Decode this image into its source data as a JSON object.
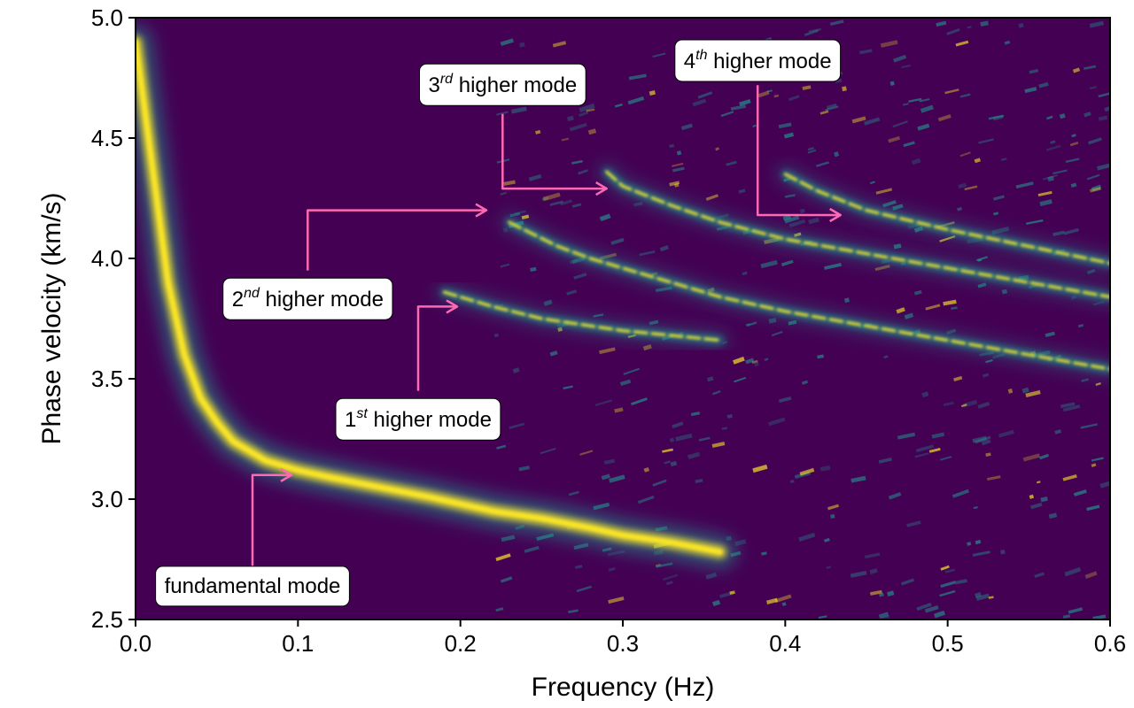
{
  "chart_data": {
    "type": "heatmap",
    "xlabel": "Frequency (Hz)",
    "ylabel": "Phase velocity (km/s)",
    "xlim": [
      0.0,
      0.6
    ],
    "ylim": [
      2.5,
      5.0
    ],
    "x_ticks": [
      "0.0",
      "0.1",
      "0.2",
      "0.3",
      "0.4",
      "0.5",
      "0.6"
    ],
    "y_ticks": [
      "2.5",
      "3.0",
      "3.5",
      "4.0",
      "4.5",
      "5.0"
    ],
    "grid": false,
    "colormap": "viridis",
    "colors": {
      "background": "#440154",
      "mid": "#21918c",
      "high": "#fde725",
      "arrow": "#ff69b4"
    },
    "modes": [
      {
        "name": "fundamental mode",
        "x": [
          0.0,
          0.01,
          0.02,
          0.03,
          0.04,
          0.05,
          0.06,
          0.08,
          0.1,
          0.12,
          0.15,
          0.18,
          0.2,
          0.22,
          0.25,
          0.28,
          0.3,
          0.33,
          0.36
        ],
        "y": [
          4.9,
          4.4,
          3.9,
          3.6,
          3.42,
          3.32,
          3.24,
          3.16,
          3.12,
          3.09,
          3.05,
          3.01,
          2.98,
          2.95,
          2.92,
          2.88,
          2.85,
          2.82,
          2.78
        ]
      },
      {
        "name": "1st higher mode",
        "x": [
          0.19,
          0.22,
          0.25,
          0.28,
          0.3,
          0.33,
          0.36
        ],
        "y": [
          3.86,
          3.8,
          3.75,
          3.72,
          3.7,
          3.68,
          3.66
        ]
      },
      {
        "name": "2nd higher mode",
        "x": [
          0.23,
          0.26,
          0.28,
          0.3,
          0.33,
          0.36,
          0.4,
          0.45,
          0.5,
          0.55,
          0.6
        ],
        "y": [
          4.15,
          4.05,
          4.0,
          3.96,
          3.9,
          3.84,
          3.78,
          3.72,
          3.66,
          3.6,
          3.54
        ]
      },
      {
        "name": "3rd higher mode",
        "x": [
          0.29,
          0.3,
          0.33,
          0.36,
          0.4,
          0.45,
          0.5,
          0.55,
          0.6
        ],
        "y": [
          4.36,
          4.3,
          4.22,
          4.15,
          4.08,
          4.02,
          3.96,
          3.9,
          3.84
        ]
      },
      {
        "name": "4th higher mode",
        "x": [
          0.4,
          0.42,
          0.45,
          0.5,
          0.55,
          0.6
        ],
        "y": [
          4.35,
          4.28,
          4.2,
          4.12,
          4.05,
          3.98
        ]
      }
    ],
    "annotations": [
      {
        "id": "fundamental",
        "base": "fundamental mode",
        "sup": "",
        "text_x": 0.072,
        "text_y": 2.64,
        "arrow": [
          [
            0.072,
            2.72
          ],
          [
            0.072,
            3.1
          ],
          [
            0.096,
            3.1
          ]
        ]
      },
      {
        "id": "first",
        "base": "1",
        "sup": "st",
        "rest": " higher mode",
        "text_x": 0.174,
        "text_y": 3.33,
        "arrow": [
          [
            0.174,
            3.45
          ],
          [
            0.174,
            3.8
          ],
          [
            0.198,
            3.8
          ]
        ]
      },
      {
        "id": "second",
        "base": "2",
        "sup": "nd",
        "rest": " higher mode",
        "text_x": 0.106,
        "text_y": 3.83,
        "arrow": [
          [
            0.106,
            3.95
          ],
          [
            0.106,
            4.2
          ],
          [
            0.216,
            4.2
          ]
        ]
      },
      {
        "id": "third",
        "base": "3",
        "sup": "rd",
        "rest": " higher mode",
        "text_x": 0.226,
        "text_y": 4.72,
        "arrow": [
          [
            0.226,
            4.6
          ],
          [
            0.226,
            4.29
          ],
          [
            0.29,
            4.29
          ]
        ]
      },
      {
        "id": "fourth",
        "base": "4",
        "sup": "th",
        "rest": " higher mode",
        "text_x": 0.383,
        "text_y": 4.82,
        "arrow": [
          [
            0.383,
            4.72
          ],
          [
            0.383,
            4.18
          ],
          [
            0.434,
            4.18
          ]
        ]
      }
    ]
  }
}
